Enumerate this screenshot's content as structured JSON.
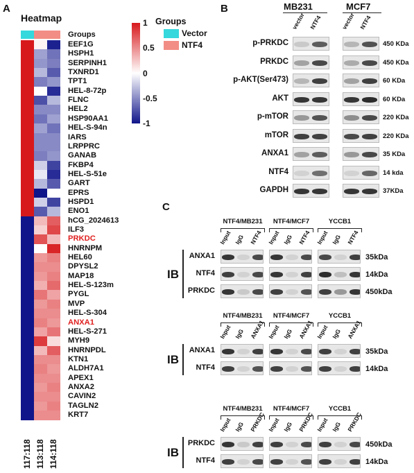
{
  "panels": {
    "a": "A",
    "b": "B",
    "c": "C"
  },
  "heatmap": {
    "title": "Heatmap",
    "groups_label": "Groups",
    "legend_title": "Groups",
    "legend_items": [
      {
        "label": "Vector",
        "color": "#35d8dc"
      },
      {
        "label": "NTF4",
        "color": "#f28d85"
      }
    ],
    "colorbar_ticks": [
      "1",
      "0.5",
      "0",
      "-0.5",
      "-1"
    ],
    "colorbar_colors": {
      "high": "#d7191c",
      "mid": "#ffffff",
      "low": "#10158a"
    },
    "group_colors": [
      "#35d8dc",
      "#f28d85",
      "#f28d85"
    ],
    "columns": [
      "117:118",
      "113:118",
      "114:118"
    ],
    "highlight_color": "#e02020",
    "rows": [
      {
        "gene": "EEF1G",
        "v": [
          1,
          0.05,
          -0.95
        ],
        "hl": false
      },
      {
        "gene": "HSPH1",
        "v": [
          1,
          -0.4,
          -0.6
        ],
        "hl": false
      },
      {
        "gene": "SERPINH1",
        "v": [
          1,
          -0.45,
          -0.55
        ],
        "hl": false
      },
      {
        "gene": "TXNRD1",
        "v": [
          1,
          -0.3,
          -0.7
        ],
        "hl": false
      },
      {
        "gene": "TPT1",
        "v": [
          1,
          -0.55,
          -0.45
        ],
        "hl": false
      },
      {
        "gene": "HEL-8-72p",
        "v": [
          1,
          0.0,
          -0.9
        ],
        "hl": false
      },
      {
        "gene": "FLNC",
        "v": [
          1,
          -0.75,
          -0.3
        ],
        "hl": false
      },
      {
        "gene": "HEL2",
        "v": [
          1,
          -0.5,
          -0.5
        ],
        "hl": false
      },
      {
        "gene": "HSP90AA1",
        "v": [
          1,
          -0.6,
          -0.4
        ],
        "hl": false
      },
      {
        "gene": "HEL-S-94n",
        "v": [
          1,
          -0.4,
          -0.6
        ],
        "hl": false
      },
      {
        "gene": "IARS",
        "v": [
          1,
          -0.5,
          -0.5
        ],
        "hl": false
      },
      {
        "gene": "LRPPRC",
        "v": [
          1,
          -0.5,
          -0.5
        ],
        "hl": false
      },
      {
        "gene": "GANAB",
        "v": [
          1,
          -0.55,
          -0.45
        ],
        "hl": false
      },
      {
        "gene": "FKBP4",
        "v": [
          1,
          -0.2,
          -0.8
        ],
        "hl": false
      },
      {
        "gene": "HEL-S-51e",
        "v": [
          1,
          -0.1,
          -0.9
        ],
        "hl": false
      },
      {
        "gene": "GART",
        "v": [
          1,
          -0.3,
          -0.7
        ],
        "hl": false
      },
      {
        "gene": "EPRS",
        "v": [
          1,
          -1,
          0.0
        ],
        "hl": false
      },
      {
        "gene": "HSPD1",
        "v": [
          1,
          -0.2,
          -0.8
        ],
        "hl": false
      },
      {
        "gene": "ENO1",
        "v": [
          1,
          -0.7,
          -0.3
        ],
        "hl": false
      },
      {
        "gene": "hCG_2024613",
        "v": [
          -1,
          0.3,
          0.7
        ],
        "hl": false
      },
      {
        "gene": "ILF3",
        "v": [
          -1,
          0.2,
          0.8
        ],
        "hl": false
      },
      {
        "gene": "PRKDC",
        "v": [
          -1,
          0.75,
          0.3
        ],
        "hl": true
      },
      {
        "gene": "HNRNPM",
        "v": [
          -1,
          0.0,
          0.95
        ],
        "hl": false
      },
      {
        "gene": "HEL60",
        "v": [
          -1,
          0.45,
          0.55
        ],
        "hl": false
      },
      {
        "gene": "DPYSL2",
        "v": [
          -1,
          0.5,
          0.5
        ],
        "hl": false
      },
      {
        "gene": "MAP18",
        "v": [
          -1,
          0.45,
          0.55
        ],
        "hl": false
      },
      {
        "gene": "HEL-S-123m",
        "v": [
          -1,
          0.35,
          0.65
        ],
        "hl": false
      },
      {
        "gene": "PYGL",
        "v": [
          -1,
          0.6,
          0.4
        ],
        "hl": false
      },
      {
        "gene": "MVP",
        "v": [
          -1,
          0.45,
          0.55
        ],
        "hl": false
      },
      {
        "gene": "HEL-S-304",
        "v": [
          -1,
          0.5,
          0.5
        ],
        "hl": false
      },
      {
        "gene": "ANXA1",
        "v": [
          -1,
          0.55,
          0.45
        ],
        "hl": true
      },
      {
        "gene": "HEL-S-271",
        "v": [
          -1,
          0.4,
          0.6
        ],
        "hl": false
      },
      {
        "gene": "MYH9",
        "v": [
          -1,
          0.85,
          0.15
        ],
        "hl": false
      },
      {
        "gene": "HNRNPDL",
        "v": [
          -1,
          0.3,
          0.7
        ],
        "hl": false
      },
      {
        "gene": "KTN1",
        "v": [
          -1,
          0.5,
          0.5
        ],
        "hl": false
      },
      {
        "gene": "ALDH7A1",
        "v": [
          -1,
          0.55,
          0.45
        ],
        "hl": false
      },
      {
        "gene": "APEX1",
        "v": [
          -1,
          0.5,
          0.5
        ],
        "hl": false
      },
      {
        "gene": "ANXA2",
        "v": [
          -1,
          0.45,
          0.55
        ],
        "hl": false
      },
      {
        "gene": "CAVIN2",
        "v": [
          -1,
          0.5,
          0.5
        ],
        "hl": false
      },
      {
        "gene": "TAGLN2",
        "v": [
          -1,
          0.45,
          0.55
        ],
        "hl": false
      },
      {
        "gene": "KRT7",
        "v": [
          -1,
          0.5,
          0.5
        ],
        "hl": false
      }
    ]
  },
  "panel_b": {
    "cell_lines": [
      "MB231",
      "MCF7"
    ],
    "lanes": [
      "vector",
      "NTF4"
    ],
    "rows": [
      {
        "label": "p-PRKDC",
        "kda": "450 KDa",
        "i": [
          0.15,
          0.7,
          0.25,
          0.75
        ]
      },
      {
        "label": "PRKDC",
        "kda": "450 KDa",
        "i": [
          0.35,
          0.8,
          0.3,
          0.8
        ]
      },
      {
        "label": "p-AKT(Ser473)",
        "kda": "60 KDa",
        "i": [
          0.25,
          0.85,
          0.35,
          0.85
        ]
      },
      {
        "label": "AKT",
        "kda": "60 KDa",
        "i": [
          0.9,
          0.9,
          0.9,
          0.95
        ]
      },
      {
        "label": "p-mTOR",
        "kda": "220 KDa",
        "i": [
          0.4,
          0.75,
          0.45,
          0.8
        ]
      },
      {
        "label": "mTOR",
        "kda": "220 KDa",
        "i": [
          0.85,
          0.85,
          0.8,
          0.85
        ]
      },
      {
        "label": "ANXA1",
        "kda": "35 KDa",
        "i": [
          0.35,
          0.7,
          0.4,
          0.8
        ]
      },
      {
        "label": "NTF4",
        "kda": "14 kda",
        "i": [
          0.1,
          0.6,
          0.1,
          0.65
        ]
      },
      {
        "label": "GAPDH",
        "kda": "37KDa",
        "i": [
          0.9,
          0.9,
          0.9,
          0.9
        ]
      }
    ]
  },
  "panel_c": {
    "groups": [
      "NTF4/MB231",
      "NTF4/MCF7",
      "YCCB1"
    ],
    "ib_label": "IB",
    "sections": [
      {
        "lanes": [
          "Input",
          "IgG",
          "NTF4"
        ],
        "rows": [
          {
            "label": "ANXA1",
            "kda": "35kDa",
            "i": [
              0.9,
              0.1,
              0.8,
              0.9,
              0.1,
              0.8,
              0.8,
              0.1,
              0.85
            ]
          },
          {
            "label": "NTF4",
            "kda": "14kDa",
            "i": [
              0.85,
              0.1,
              0.8,
              0.9,
              0.1,
              0.85,
              0.95,
              0.2,
              0.9
            ]
          },
          {
            "label": "PRKDC",
            "kda": "450kDa",
            "i": [
              0.9,
              0.15,
              0.8,
              0.85,
              0.1,
              0.75,
              0.85,
              0.4,
              0.9
            ]
          }
        ]
      },
      {
        "lanes": [
          "Input",
          "IgG",
          "ANXA1"
        ],
        "rows": [
          {
            "label": "ANXA1",
            "kda": "35kDa",
            "i": [
              0.9,
              0.1,
              0.85,
              0.9,
              0.1,
              0.8,
              0.85,
              0.1,
              0.85
            ]
          },
          {
            "label": "NTF4",
            "kda": "14kDa",
            "i": [
              0.85,
              0.1,
              0.75,
              0.85,
              0.1,
              0.75,
              0.85,
              0.1,
              0.85
            ]
          }
        ]
      },
      {
        "lanes": [
          "Input",
          "IgG",
          "PRKDC"
        ],
        "rows": [
          {
            "label": "PRKDC",
            "kda": "450kDa",
            "i": [
              0.9,
              0.15,
              0.85,
              0.85,
              0.1,
              0.8,
              0.85,
              0.1,
              0.8
            ]
          },
          {
            "label": "NTF4",
            "kda": "14kDa",
            "i": [
              0.85,
              0.1,
              0.8,
              0.85,
              0.1,
              0.75,
              0.85,
              0.1,
              0.85
            ]
          }
        ]
      }
    ]
  }
}
